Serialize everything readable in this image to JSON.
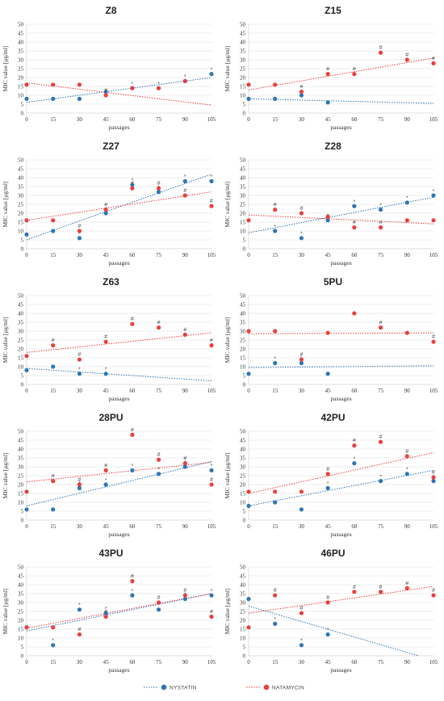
{
  "colors": {
    "nystatin": "#2E75B6",
    "natamycin": "#E8403E",
    "grid": "#D9D9D9",
    "axis": "#BFBFBF",
    "text": "#333333"
  },
  "legend": {
    "items": [
      {
        "label": "NYSTATIN",
        "series": "nystatin"
      },
      {
        "label": "NATAMYCIN",
        "series": "natamycin"
      }
    ]
  },
  "chart_data": [
    {
      "type": "scatter",
      "title": "Z8",
      "xlabel": "passages",
      "ylabel": "MIC value [μg/ml]",
      "x": [
        0,
        15,
        30,
        45,
        60,
        75,
        90,
        105
      ],
      "xlim": [
        0,
        105
      ],
      "ylim": [
        0,
        50
      ],
      "yticks_step": 5,
      "grid": true,
      "series": [
        {
          "key": "nystatin",
          "values": [
            8,
            8,
            8,
            12,
            14,
            14,
            18,
            22
          ],
          "marks": [
            "",
            "",
            "",
            "",
            "*",
            "*",
            "*",
            "*"
          ],
          "trend": [
            6,
            20
          ]
        },
        {
          "key": "natamycin",
          "values": [
            16,
            16,
            16,
            10,
            14,
            14,
            18,
            null
          ],
          "marks": [
            "",
            "",
            "",
            "#",
            "",
            "",
            "",
            ""
          ],
          "trend": [
            17,
            4.5
          ]
        }
      ]
    },
    {
      "type": "scatter",
      "title": "Z15",
      "xlabel": "passages",
      "ylabel": "MIC value [μg/ml]",
      "x": [
        0,
        15,
        30,
        45,
        60,
        75,
        90,
        105
      ],
      "xlim": [
        0,
        105
      ],
      "ylim": [
        0,
        50
      ],
      "yticks_step": 5,
      "grid": true,
      "series": [
        {
          "key": "nystatin",
          "values": [
            8,
            8,
            10,
            6,
            null,
            null,
            null,
            null
          ],
          "marks": [
            "",
            "",
            "",
            "",
            "",
            "",
            "",
            ""
          ],
          "trend": [
            8,
            5.5
          ]
        },
        {
          "key": "natamycin",
          "values": [
            16,
            16,
            12,
            22,
            22,
            34,
            30,
            28
          ],
          "marks": [
            "",
            "",
            "#",
            "#",
            "#",
            "#",
            "#",
            "#"
          ],
          "trend": [
            13,
            31
          ]
        }
      ]
    },
    {
      "type": "scatter",
      "title": "Z27",
      "xlabel": "passages",
      "ylabel": "MIC value [μg/ml]",
      "x": [
        0,
        15,
        30,
        45,
        60,
        75,
        90,
        105
      ],
      "xlim": [
        0,
        105
      ],
      "ylim": [
        0,
        50
      ],
      "yticks_step": 5,
      "grid": true,
      "series": [
        {
          "key": "nystatin",
          "values": [
            8,
            10,
            6,
            20,
            36,
            32,
            38,
            38
          ],
          "marks": [
            "",
            "",
            "*",
            "*",
            "*",
            "*",
            "*",
            "*"
          ],
          "trend": [
            5,
            42
          ]
        },
        {
          "key": "natamycin",
          "values": [
            16,
            16,
            10,
            22,
            34,
            34,
            30,
            24
          ],
          "marks": [
            "",
            "",
            "#",
            "#",
            "#",
            "#",
            "#",
            "#"
          ],
          "trend": [
            16,
            32
          ]
        }
      ]
    },
    {
      "type": "scatter",
      "title": "Z28",
      "xlabel": "passages",
      "ylabel": "MIC value [μg/ml]",
      "x": [
        0,
        15,
        30,
        45,
        60,
        75,
        90,
        105
      ],
      "xlim": [
        0,
        105
      ],
      "ylim": [
        0,
        50
      ],
      "yticks_step": 5,
      "grid": true,
      "series": [
        {
          "key": "nystatin",
          "values": [
            null,
            10,
            6,
            16,
            24,
            22,
            26,
            30
          ],
          "marks": [
            "",
            "*",
            "*",
            "*",
            "*",
            "*",
            "*",
            "*"
          ],
          "trend": [
            9,
            29
          ]
        },
        {
          "key": "natamycin",
          "values": [
            16,
            22,
            20,
            18,
            12,
            12,
            16,
            16
          ],
          "marks": [
            "",
            "#",
            "#",
            "",
            "#",
            "#",
            "",
            ""
          ],
          "trend": [
            19,
            14
          ]
        }
      ]
    },
    {
      "type": "scatter",
      "title": "Z63",
      "xlabel": "passages",
      "ylabel": "MIC value [μg/ml]",
      "x": [
        0,
        15,
        30,
        45,
        60,
        75,
        90,
        105
      ],
      "xlim": [
        0,
        105
      ],
      "ylim": [
        0,
        50
      ],
      "yticks_step": 5,
      "grid": true,
      "series": [
        {
          "key": "nystatin",
          "values": [
            8,
            10,
            6,
            6,
            null,
            null,
            null,
            null
          ],
          "marks": [
            "",
            "",
            "*",
            "*",
            "",
            "",
            "",
            ""
          ],
          "trend": [
            9,
            2
          ]
        },
        {
          "key": "natamycin",
          "values": [
            16,
            22,
            14,
            24,
            34,
            32,
            28,
            22
          ],
          "marks": [
            "",
            "#",
            "#",
            "#",
            "#",
            "#",
            "#",
            "#"
          ],
          "trend": [
            18,
            29
          ]
        }
      ]
    },
    {
      "type": "scatter",
      "title": "5PU",
      "xlabel": "passages",
      "ylabel": "MIC value [μg/ml]",
      "x": [
        0,
        15,
        30,
        45,
        60,
        75,
        90,
        105
      ],
      "xlim": [
        0,
        105
      ],
      "ylim": [
        0,
        50
      ],
      "yticks_step": 5,
      "grid": true,
      "series": [
        {
          "key": "nystatin",
          "values": [
            6,
            12,
            12,
            6,
            null,
            null,
            null,
            null
          ],
          "marks": [
            "",
            "*",
            "*",
            "",
            "",
            "",
            "",
            ""
          ],
          "trend": [
            9.5,
            10.5
          ]
        },
        {
          "key": "natamycin",
          "values": [
            30,
            30,
            14,
            29,
            40,
            32,
            29,
            24
          ],
          "marks": [
            "",
            "",
            "#",
            "",
            "",
            "#",
            "",
            "#"
          ],
          "trend": [
            28.5,
            29
          ]
        }
      ]
    },
    {
      "type": "scatter",
      "title": "28PU",
      "xlabel": "passages",
      "ylabel": "MIC value [μg/ml]",
      "x": [
        0,
        15,
        30,
        45,
        60,
        75,
        90,
        105
      ],
      "xlim": [
        0,
        105
      ],
      "ylim": [
        0,
        50
      ],
      "yticks_step": 5,
      "grid": true,
      "series": [
        {
          "key": "nystatin",
          "values": [
            6,
            6,
            18,
            20,
            28,
            26,
            30,
            28
          ],
          "marks": [
            "",
            "",
            "*",
            "*",
            "*",
            "*",
            "*",
            "*"
          ],
          "trend": [
            8,
            33
          ]
        },
        {
          "key": "natamycin",
          "values": [
            16,
            22,
            20,
            28,
            48,
            34,
            32,
            20
          ],
          "marks": [
            "",
            "#",
            "#",
            "#",
            "#",
            "#",
            "#",
            "#"
          ],
          "trend": [
            21.5,
            32.5
          ]
        }
      ]
    },
    {
      "type": "scatter",
      "title": "42PU",
      "xlabel": "passages",
      "ylabel": "MIC value [μg/ml]",
      "x": [
        0,
        15,
        30,
        45,
        60,
        75,
        90,
        105
      ],
      "xlim": [
        0,
        105
      ],
      "ylim": [
        0,
        50
      ],
      "yticks_step": 5,
      "grid": true,
      "series": [
        {
          "key": "nystatin",
          "values": [
            8,
            10,
            6,
            18,
            32,
            22,
            26,
            22
          ],
          "marks": [
            "",
            "",
            "",
            "*",
            "*",
            "*",
            "*",
            "*"
          ],
          "trend": [
            8,
            28
          ]
        },
        {
          "key": "natamycin",
          "values": [
            16,
            16,
            16,
            26,
            42,
            44,
            36,
            24
          ],
          "marks": [
            "",
            "",
            "",
            "#",
            "#",
            "#",
            "#",
            "#"
          ],
          "trend": [
            15,
            38
          ]
        }
      ]
    },
    {
      "type": "scatter",
      "title": "43PU",
      "xlabel": "passages",
      "ylabel": "MIC value [μg/ml]",
      "x": [
        0,
        15,
        30,
        45,
        60,
        75,
        90,
        105
      ],
      "xlim": [
        0,
        105
      ],
      "ylim": [
        0,
        50
      ],
      "yticks_step": 5,
      "grid": true,
      "series": [
        {
          "key": "nystatin",
          "values": [
            16,
            6,
            26,
            24,
            34,
            26,
            32,
            34
          ],
          "marks": [
            "",
            "*",
            "*",
            "*",
            "*",
            "*",
            "*",
            "*"
          ],
          "trend": [
            14,
            35
          ]
        },
        {
          "key": "natamycin",
          "values": [
            16,
            16,
            12,
            22,
            42,
            30,
            34,
            22
          ],
          "marks": [
            "",
            "",
            "#",
            "#",
            "#",
            "#",
            "#",
            "#"
          ],
          "trend": [
            15.5,
            35
          ]
        }
      ]
    },
    {
      "type": "scatter",
      "title": "46PU",
      "xlabel": "passages",
      "ylabel": "MIC value [μg/ml]",
      "x": [
        0,
        15,
        30,
        45,
        60,
        75,
        90,
        105
      ],
      "xlim": [
        0,
        105
      ],
      "ylim": [
        0,
        50
      ],
      "yticks_step": 5,
      "grid": true,
      "series": [
        {
          "key": "nystatin",
          "values": [
            32,
            18,
            6,
            12,
            null,
            null,
            null,
            null
          ],
          "marks": [
            "",
            "*",
            "*",
            "*",
            "",
            "",
            "",
            ""
          ],
          "trend": [
            28,
            -2.5
          ]
        },
        {
          "key": "natamycin",
          "values": [
            16,
            34,
            24,
            30,
            36,
            36,
            38,
            34
          ],
          "marks": [
            "",
            "#",
            "#",
            "#",
            "#",
            "#",
            "#",
            "#"
          ],
          "trend": [
            24,
            39
          ]
        }
      ]
    }
  ]
}
